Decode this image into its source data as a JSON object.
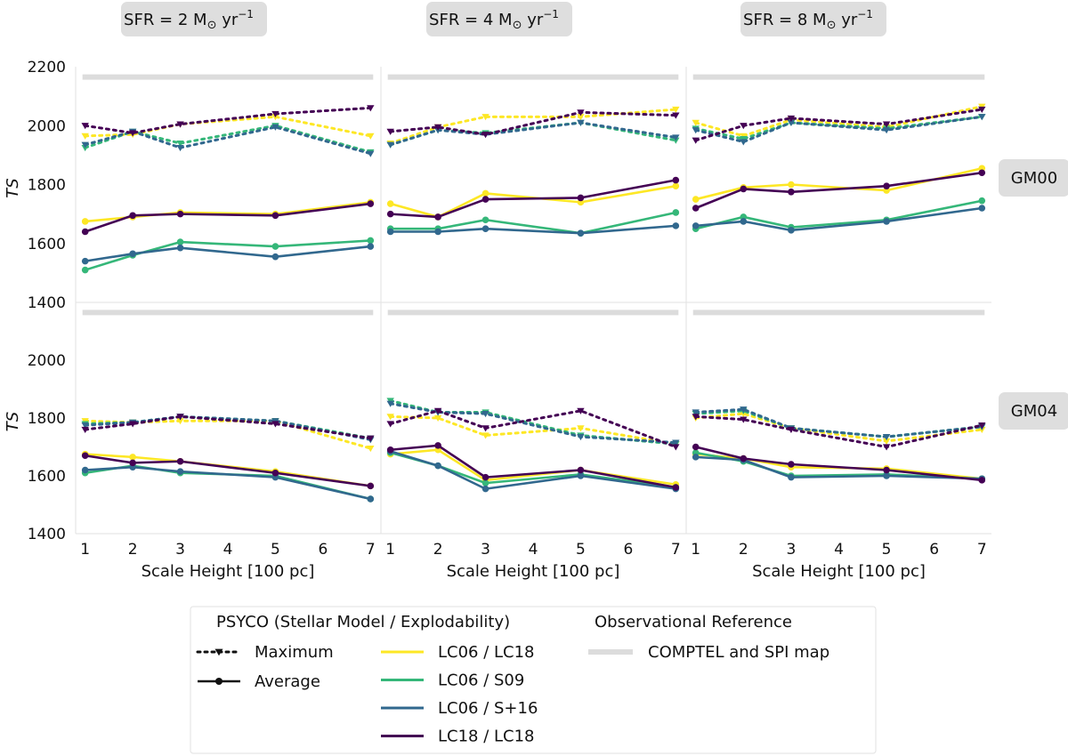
{
  "chart_data": {
    "type": "line",
    "x": [
      1,
      2,
      3,
      5,
      7
    ],
    "x_ticks": [
      1,
      2,
      3,
      4,
      5,
      6,
      7
    ],
    "xlabel": "Scale Height [100 pc]",
    "ylabel": "TS",
    "ylim": [
      1400,
      2200
    ],
    "y_ticks": [
      1400,
      1600,
      1800,
      2000,
      2200
    ],
    "reference_value": 2165,
    "columns": [
      {
        "label": "SFR = 2 M",
        "unit_suffix": " yr",
        "exp": "−1"
      },
      {
        "label": "SFR = 4 M",
        "unit_suffix": " yr",
        "exp": "−1"
      },
      {
        "label": "SFR = 8 M",
        "unit_suffix": " yr",
        "exp": "−1"
      }
    ],
    "sun_symbol": "⊙",
    "rows": [
      "GM00",
      "GM04"
    ],
    "colors": {
      "LC06 / LC18": "#fde725",
      "LC06 / S09": "#35b779",
      "LC06 / S+16": "#31688e",
      "LC18 / LC18": "#440154",
      "reference": "#dcdcdc",
      "panel_border": "#e2e2e2",
      "badge_bg": "#dedede"
    },
    "panels": [
      {
        "row": "GM00",
        "col": 0,
        "series": [
          {
            "model": "LC06 / LC18",
            "stat": "Maximum",
            "values": [
              1965,
              1970,
              2005,
              2030,
              1965
            ]
          },
          {
            "model": "LC06 / S09",
            "stat": "Maximum",
            "values": [
              1925,
              1980,
              1940,
              2000,
              1910
            ]
          },
          {
            "model": "LC06 / S+16",
            "stat": "Maximum",
            "values": [
              1935,
              1980,
              1925,
              1995,
              1905
            ]
          },
          {
            "model": "LC18 / LC18",
            "stat": "Maximum",
            "values": [
              2000,
              1975,
              2005,
              2040,
              2060
            ]
          },
          {
            "model": "LC06 / LC18",
            "stat": "Average",
            "values": [
              1675,
              1690,
              1705,
              1700,
              1740
            ]
          },
          {
            "model": "LC06 / S09",
            "stat": "Average",
            "values": [
              1510,
              1560,
              1605,
              1590,
              1610
            ]
          },
          {
            "model": "LC06 / S+16",
            "stat": "Average",
            "values": [
              1540,
              1565,
              1585,
              1555,
              1590
            ]
          },
          {
            "model": "LC18 / LC18",
            "stat": "Average",
            "values": [
              1640,
              1695,
              1700,
              1695,
              1735
            ]
          }
        ]
      },
      {
        "row": "GM00",
        "col": 1,
        "series": [
          {
            "model": "LC06 / LC18",
            "stat": "Maximum",
            "values": [
              1940,
              1995,
              2030,
              2030,
              2055
            ]
          },
          {
            "model": "LC06 / S09",
            "stat": "Maximum",
            "values": [
              1935,
              1985,
              1975,
              2010,
              1950
            ]
          },
          {
            "model": "LC06 / S+16",
            "stat": "Maximum",
            "values": [
              1935,
              1985,
              1970,
              2010,
              1960
            ]
          },
          {
            "model": "LC18 / LC18",
            "stat": "Maximum",
            "values": [
              1980,
              1995,
              1970,
              2045,
              2035
            ]
          },
          {
            "model": "LC06 / LC18",
            "stat": "Average",
            "values": [
              1735,
              1690,
              1770,
              1740,
              1795
            ]
          },
          {
            "model": "LC06 / S09",
            "stat": "Average",
            "values": [
              1650,
              1650,
              1680,
              1635,
              1705
            ]
          },
          {
            "model": "LC06 / S+16",
            "stat": "Average",
            "values": [
              1640,
              1640,
              1650,
              1635,
              1660
            ]
          },
          {
            "model": "LC18 / LC18",
            "stat": "Average",
            "values": [
              1700,
              1690,
              1750,
              1755,
              1815
            ]
          }
        ]
      },
      {
        "row": "GM00",
        "col": 2,
        "series": [
          {
            "model": "LC06 / LC18",
            "stat": "Maximum",
            "values": [
              2010,
              1965,
              2020,
              1995,
              2065
            ]
          },
          {
            "model": "LC06 / S09",
            "stat": "Maximum",
            "values": [
              1990,
              1955,
              2010,
              1990,
              2030
            ]
          },
          {
            "model": "LC06 / S+16",
            "stat": "Maximum",
            "values": [
              1985,
              1945,
              2010,
              1985,
              2030
            ]
          },
          {
            "model": "LC18 / LC18",
            "stat": "Maximum",
            "values": [
              1950,
              2000,
              2025,
              2005,
              2055
            ]
          },
          {
            "model": "LC06 / LC18",
            "stat": "Average",
            "values": [
              1750,
              1790,
              1800,
              1780,
              1855
            ]
          },
          {
            "model": "LC06 / S09",
            "stat": "Average",
            "values": [
              1650,
              1690,
              1655,
              1680,
              1745
            ]
          },
          {
            "model": "LC06 / S+16",
            "stat": "Average",
            "values": [
              1660,
              1675,
              1645,
              1675,
              1720
            ]
          },
          {
            "model": "LC18 / LC18",
            "stat": "Average",
            "values": [
              1720,
              1785,
              1775,
              1795,
              1840
            ]
          }
        ]
      },
      {
        "row": "GM04",
        "col": 0,
        "series": [
          {
            "model": "LC06 / LC18",
            "stat": "Maximum",
            "values": [
              1790,
              1785,
              1790,
              1790,
              1695
            ]
          },
          {
            "model": "LC06 / S09",
            "stat": "Maximum",
            "values": [
              1780,
              1785,
              1805,
              1790,
              1730
            ]
          },
          {
            "model": "LC06 / S+16",
            "stat": "Maximum",
            "values": [
              1775,
              1785,
              1805,
              1790,
              1725
            ]
          },
          {
            "model": "LC18 / LC18",
            "stat": "Maximum",
            "values": [
              1760,
              1780,
              1805,
              1780,
              1730
            ]
          },
          {
            "model": "LC06 / LC18",
            "stat": "Average",
            "values": [
              1675,
              1665,
              1650,
              1615,
              1565
            ]
          },
          {
            "model": "LC06 / S09",
            "stat": "Average",
            "values": [
              1610,
              1635,
              1610,
              1600,
              1520
            ]
          },
          {
            "model": "LC06 / S+16",
            "stat": "Average",
            "values": [
              1620,
              1630,
              1615,
              1595,
              1520
            ]
          },
          {
            "model": "LC18 / LC18",
            "stat": "Average",
            "values": [
              1670,
              1645,
              1650,
              1610,
              1565
            ]
          }
        ]
      },
      {
        "row": "GM04",
        "col": 1,
        "series": [
          {
            "model": "LC06 / LC18",
            "stat": "Maximum",
            "values": [
              1805,
              1800,
              1740,
              1765,
              1710
            ]
          },
          {
            "model": "LC06 / S09",
            "stat": "Maximum",
            "values": [
              1860,
              1820,
              1820,
              1740,
              1710
            ]
          },
          {
            "model": "LC06 / S+16",
            "stat": "Maximum",
            "values": [
              1850,
              1820,
              1815,
              1735,
              1715
            ]
          },
          {
            "model": "LC18 / LC18",
            "stat": "Maximum",
            "values": [
              1780,
              1825,
              1765,
              1825,
              1700
            ]
          },
          {
            "model": "LC06 / LC18",
            "stat": "Average",
            "values": [
              1675,
              1690,
              1585,
              1620,
              1570
            ]
          },
          {
            "model": "LC06 / S09",
            "stat": "Average",
            "values": [
              1680,
              1635,
              1575,
              1605,
              1560
            ]
          },
          {
            "model": "LC06 / S+16",
            "stat": "Average",
            "values": [
              1685,
              1635,
              1555,
              1600,
              1555
            ]
          },
          {
            "model": "LC18 / LC18",
            "stat": "Average",
            "values": [
              1690,
              1705,
              1595,
              1620,
              1560
            ]
          }
        ]
      },
      {
        "row": "GM04",
        "col": 2,
        "series": [
          {
            "model": "LC06 / LC18",
            "stat": "Maximum",
            "values": [
              1800,
              1815,
              1765,
              1720,
              1760
            ]
          },
          {
            "model": "LC06 / S09",
            "stat": "Maximum",
            "values": [
              1815,
              1825,
              1765,
              1735,
              1770
            ]
          },
          {
            "model": "LC06 / S+16",
            "stat": "Maximum",
            "values": [
              1820,
              1830,
              1765,
              1735,
              1770
            ]
          },
          {
            "model": "LC18 / LC18",
            "stat": "Maximum",
            "values": [
              1805,
              1795,
              1760,
              1700,
              1775
            ]
          },
          {
            "model": "LC06 / LC18",
            "stat": "Average",
            "values": [
              1675,
              1660,
              1630,
              1625,
              1590
            ]
          },
          {
            "model": "LC06 / S09",
            "stat": "Average",
            "values": [
              1680,
              1650,
              1600,
              1605,
              1590
            ]
          },
          {
            "model": "LC06 / S+16",
            "stat": "Average",
            "values": [
              1665,
              1655,
              1595,
              1600,
              1590
            ]
          },
          {
            "model": "LC18 / LC18",
            "stat": "Average",
            "values": [
              1700,
              1660,
              1640,
              1620,
              1585
            ]
          }
        ]
      }
    ],
    "legend": {
      "position": "bottom-center",
      "group1_title": "PSYCO (Stellar Model / Explodability)",
      "group2_title": "Observational Reference",
      "stats": [
        "Maximum",
        "Average"
      ],
      "models": [
        "LC06 / LC18",
        "LC06 / S09",
        "LC06 / S+16",
        "LC18 / LC18"
      ],
      "reference_label": "COMPTEL and SPI map"
    }
  }
}
